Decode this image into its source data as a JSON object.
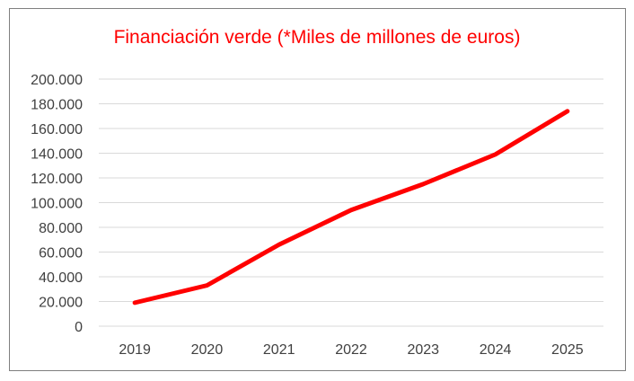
{
  "chart_data": {
    "type": "line",
    "title": "Financiación verde (*Miles de millones de euros)",
    "xlabel": "",
    "ylabel": "",
    "categories": [
      "2019",
      "2020",
      "2021",
      "2022",
      "2023",
      "2024",
      "2025"
    ],
    "series": [
      {
        "values": [
          19000,
          33000,
          66000,
          94000,
          115000,
          139000,
          174000
        ]
      }
    ],
    "ylim": [
      0,
      200000
    ],
    "ytick_labels": [
      "0",
      "20.000",
      "40.000",
      "60.000",
      "80.000",
      "100.000",
      "120.000",
      "140.000",
      "160.000",
      "180.000",
      "200.000"
    ],
    "grid": true,
    "legend": "none",
    "colors": {
      "line": "#ff0000",
      "title": "#ff0000",
      "grid": "#d9d9d9",
      "frame": "#7f7f7f",
      "tick_text": "#404040"
    }
  }
}
